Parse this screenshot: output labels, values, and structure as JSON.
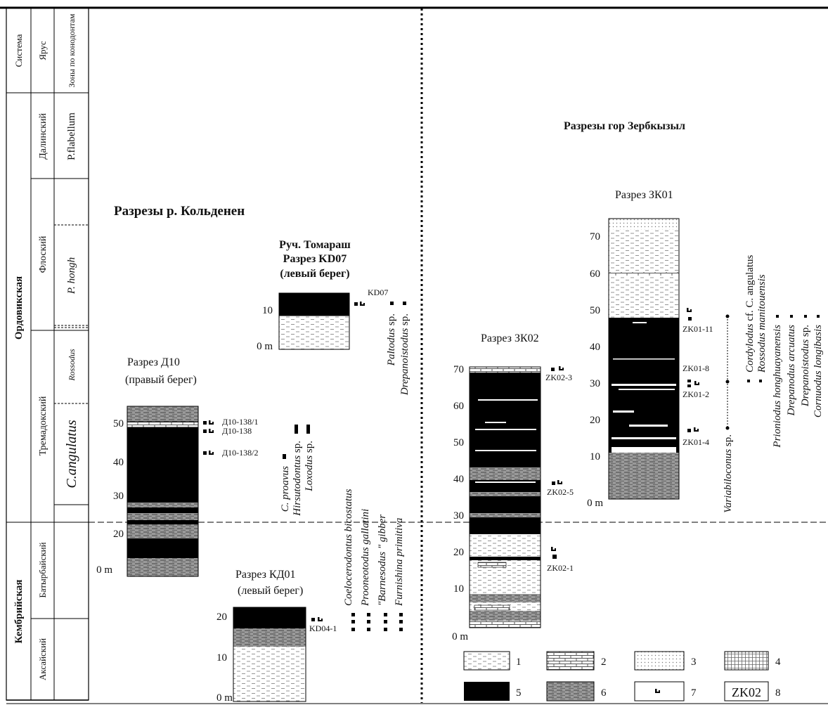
{
  "titles": {
    "kolden": "Разрезы р. Кольденен",
    "zerb": "Разрезы гор Зербкызыл"
  },
  "strat": {
    "headers": [
      "Система",
      "Ярус",
      "Зоны по конодонтам"
    ],
    "systems": [
      "Ордовикская",
      "Кембрийская"
    ],
    "stages": [
      "Далинский",
      "Флоский",
      "Тремадокский",
      "Батырбайский",
      "Аксайский"
    ],
    "zones": [
      "P.flabellum",
      "P. hongh",
      "Rossodus",
      "C.angulatus"
    ]
  },
  "sections": {
    "d10": {
      "title1": "Разрез Д10",
      "title2": "(правый берег)",
      "ticks": [
        "50",
        "40",
        "30",
        "20",
        "0 m"
      ],
      "samples": [
        "Д10-138/1",
        "Д10-138",
        "Д10-138/2"
      ]
    },
    "kd07": {
      "title1": "Руч. Томараш",
      "title2": "Разрез KD07",
      "title3": "(левый берег)",
      "ticks": [
        "10",
        "0 m"
      ],
      "samples": [
        "KD07"
      ]
    },
    "kd01": {
      "title1": "Разрез КД01",
      "title2": "(левый берег)",
      "ticks": [
        "20",
        "10",
        "0 m"
      ],
      "samples": [
        "KD04-1"
      ]
    },
    "zk02": {
      "title": "Разрез ЗК02",
      "ticks": [
        "70",
        "60",
        "50",
        "40",
        "30",
        "20",
        "10",
        "0 m"
      ],
      "samples": [
        "ZK02-3",
        "ZK02-5",
        "ZK02-1"
      ]
    },
    "zk01": {
      "title": "Разрез ЗК01",
      "ticks": [
        "70",
        "60",
        "50",
        "40",
        "30",
        "20",
        "10",
        "0 m"
      ],
      "samples": [
        "ZK01-11",
        "ZK01-8",
        "ZK01-2",
        "ZK01-4"
      ]
    }
  },
  "taxa": {
    "d10": [
      {
        "genus": "C. proavus",
        "sp": ""
      },
      {
        "genus": "Hirsutodontus",
        "sp": " sp."
      },
      {
        "genus": "Loxodus",
        "sp": " sp."
      }
    ],
    "kd07": [
      {
        "genus": "Paltodus",
        "sp": " sp."
      },
      {
        "genus": "Drepanoistodus",
        "sp": " sp."
      }
    ],
    "kd01": [
      {
        "genus": "Coelocerodontus bicostatus",
        "sp": ""
      },
      {
        "genus": "Prooneotodus gallatini",
        "sp": ""
      },
      {
        "genus": "\"Barnesodus \" gibber",
        "sp": ""
      },
      {
        "genus": "Furnishina primitiva",
        "sp": ""
      }
    ],
    "zk01": [
      {
        "genus": "Variabiloconus",
        "sp": " sp."
      },
      {
        "genus": "Cordylodus",
        "sp": " cf. C. angulatus"
      },
      {
        "genus": "Rossodus manitouensis",
        "sp": ""
      },
      {
        "genus": "Prioniodus honghuayanensis",
        "sp": ""
      },
      {
        "genus": "Drepanodus arcuatus",
        "sp": ""
      },
      {
        "genus": "Drepanoistodus",
        "sp": " sp."
      },
      {
        "genus": "Cornuodus longibasis",
        "sp": ""
      }
    ]
  },
  "legend": [
    {
      "num": "1",
      "pattern": "dashes"
    },
    {
      "num": "2",
      "pattern": "bricks"
    },
    {
      "num": "3",
      "pattern": "dots"
    },
    {
      "num": "4",
      "pattern": "grid"
    },
    {
      "num": "5",
      "pattern": "black"
    },
    {
      "num": "6",
      "pattern": "grey-lines"
    },
    {
      "num": "7",
      "pattern": "fossil-symbol"
    },
    {
      "num": "8",
      "pattern": "sample-box",
      "label": "ZK02"
    }
  ]
}
